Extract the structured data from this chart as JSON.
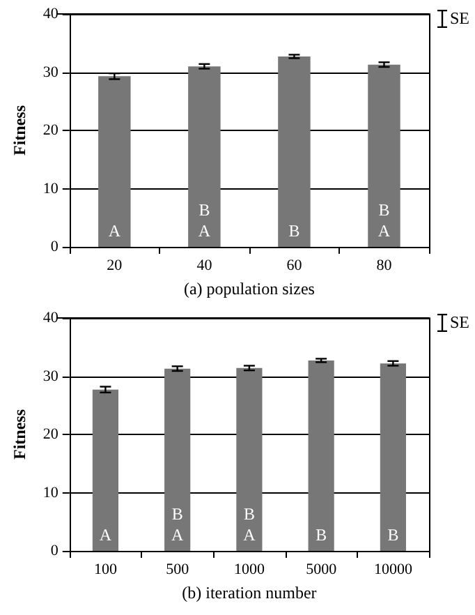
{
  "chart_data": [
    {
      "type": "bar",
      "xlabel": "(a) population sizes",
      "ylabel": "Fitness",
      "categories": [
        "20",
        "40",
        "60",
        "80"
      ],
      "values": [
        29.3,
        31.0,
        32.7,
        31.3
      ],
      "errors": [
        0.5,
        0.4,
        0.3,
        0.4
      ],
      "color": "#777777",
      "value_labels": [
        "A",
        "B\nA",
        "B",
        "B\nA"
      ],
      "ylim": [
        0,
        40
      ],
      "yticks": [
        0,
        10,
        20,
        30,
        40
      ],
      "grid": "y",
      "annotations": [
        "SE"
      ]
    },
    {
      "type": "bar",
      "xlabel": "(b) iteration number",
      "ylabel": "Fitness",
      "categories": [
        "100",
        "500",
        "1000",
        "5000",
        "10000"
      ],
      "values": [
        27.7,
        31.3,
        31.4,
        32.7,
        32.2
      ],
      "errors": [
        0.5,
        0.4,
        0.4,
        0.3,
        0.4
      ],
      "color": "#777777",
      "value_labels": [
        "A",
        "B\nA",
        "B\nA",
        "B",
        "B"
      ],
      "ylim": [
        0,
        40
      ],
      "yticks": [
        0,
        10,
        20,
        30,
        40
      ],
      "grid": "y",
      "annotations": [
        "SE"
      ]
    }
  ]
}
